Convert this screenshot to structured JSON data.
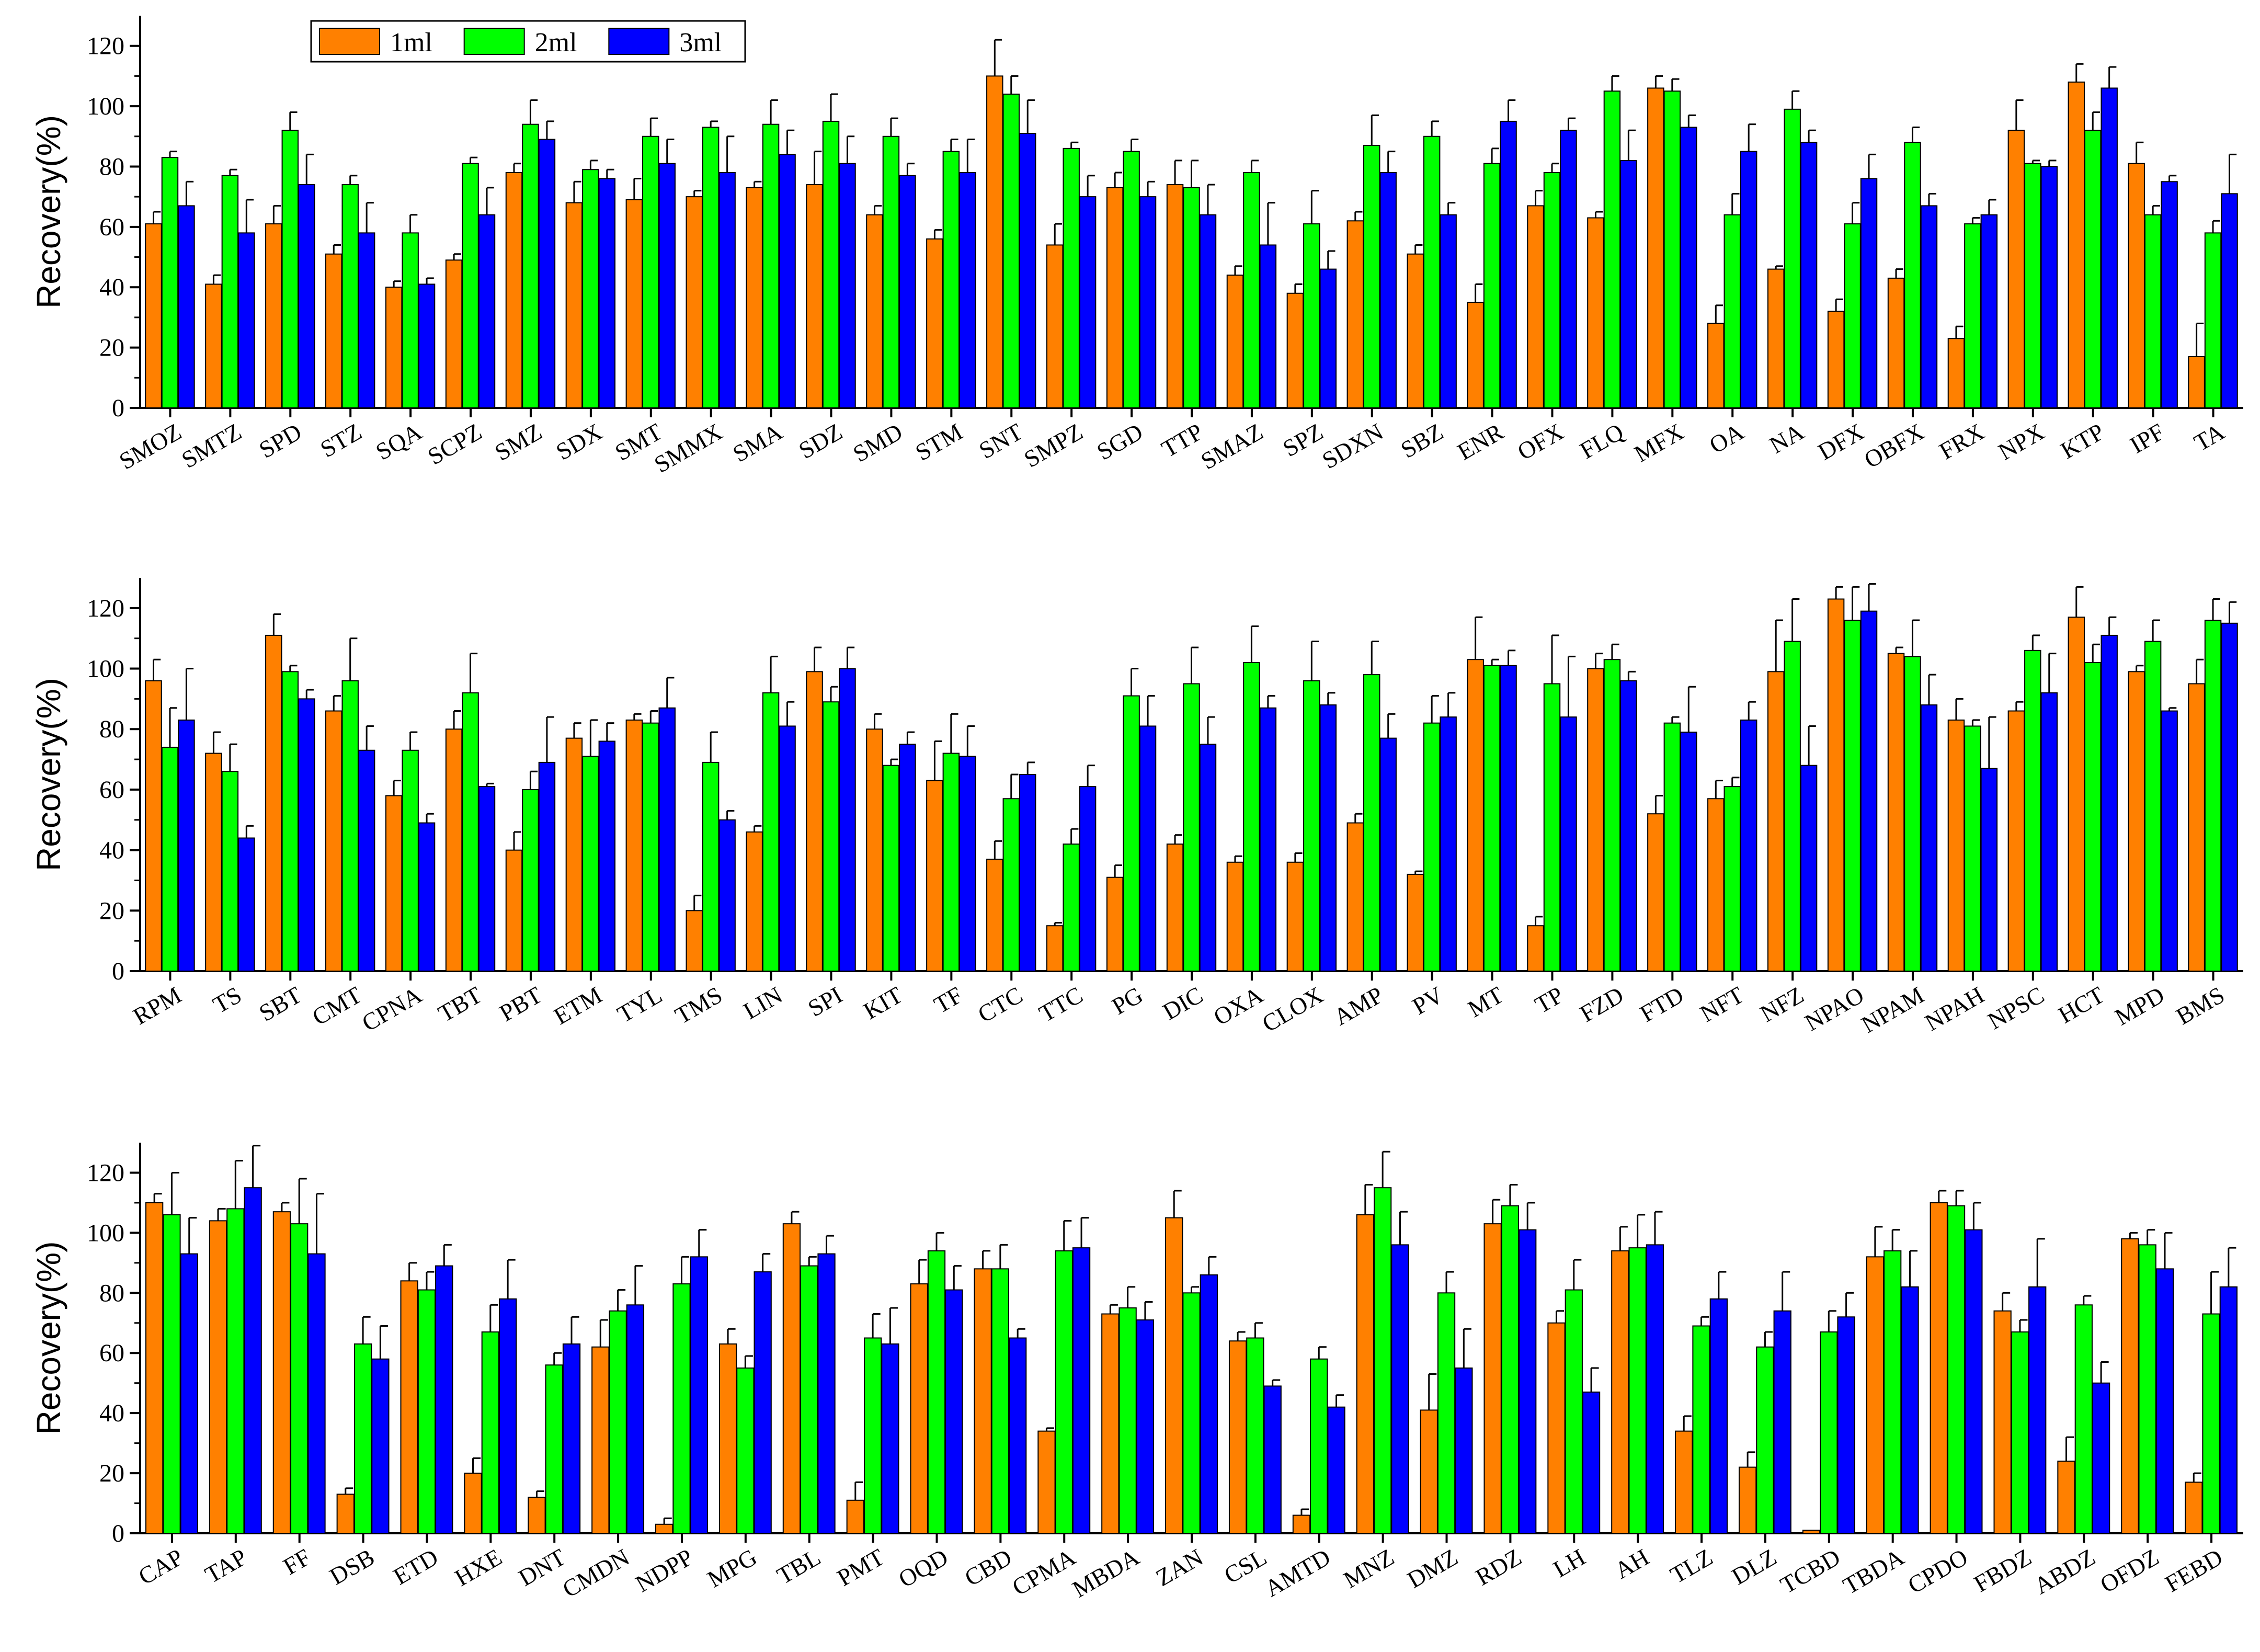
{
  "legend": [
    "1ml",
    "2ml",
    "3ml"
  ],
  "colors": {
    "1ml": "#ff8000",
    "2ml": "#00ff00",
    "3ml": "#0000ff"
  },
  "chart_data": [
    {
      "type": "bar",
      "ylabel": "Recovery(%)",
      "ylim": [
        0,
        130
      ],
      "yticks": [
        0,
        20,
        40,
        60,
        80,
        100,
        120
      ],
      "legend_position": "top-left",
      "categories": [
        "SMOZ",
        "SMTZ",
        "SPD",
        "STZ",
        "SQA",
        "SCPZ",
        "SMZ",
        "SDX",
        "SMT",
        "SMMX",
        "SMA",
        "SDZ",
        "SMD",
        "STM",
        "SNT",
        "SMPZ",
        "SGD",
        "TTP",
        "SMAZ",
        "SPZ",
        "SDXN",
        "SBZ",
        "ENR",
        "OFX",
        "FLQ",
        "MFX",
        "OA",
        "NA",
        "DFX",
        "OBFX",
        "FRX",
        "NPX",
        "KTP",
        "IPF",
        "TA"
      ],
      "series": [
        {
          "name": "1ml",
          "values": [
            61,
            41,
            61,
            51,
            40,
            49,
            78,
            68,
            69,
            70,
            73,
            74,
            64,
            56,
            110,
            54,
            73,
            74,
            44,
            38,
            62,
            51,
            35,
            67,
            63,
            106,
            28,
            46,
            32,
            43,
            23,
            92,
            108,
            81,
            17
          ],
          "errors": [
            4,
            3,
            6,
            3,
            2,
            2,
            3,
            7,
            7,
            2,
            2,
            11,
            3,
            3,
            12,
            7,
            5,
            8,
            3,
            3,
            3,
            3,
            6,
            5,
            2,
            4,
            6,
            1,
            4,
            3,
            4,
            10,
            6,
            7,
            11
          ]
        },
        {
          "name": "2ml",
          "values": [
            83,
            77,
            92,
            74,
            58,
            81,
            94,
            79,
            90,
            93,
            94,
            95,
            90,
            85,
            104,
            86,
            85,
            73,
            78,
            61,
            87,
            90,
            81,
            78,
            105,
            105,
            64,
            99,
            61,
            88,
            61,
            81,
            92,
            64,
            58
          ],
          "errors": [
            2,
            2,
            6,
            3,
            6,
            2,
            8,
            3,
            6,
            2,
            8,
            9,
            6,
            4,
            6,
            2,
            4,
            9,
            4,
            11,
            10,
            5,
            5,
            3,
            5,
            4,
            7,
            6,
            7,
            5,
            2,
            1,
            6,
            3,
            4
          ]
        },
        {
          "name": "3ml",
          "values": [
            67,
            58,
            74,
            58,
            41,
            64,
            89,
            76,
            81,
            78,
            84,
            81,
            77,
            78,
            91,
            70,
            70,
            64,
            54,
            46,
            78,
            64,
            95,
            92,
            82,
            93,
            85,
            88,
            76,
            67,
            64,
            80,
            106,
            75,
            71
          ],
          "errors": [
            8,
            11,
            10,
            10,
            2,
            9,
            6,
            3,
            8,
            12,
            8,
            9,
            4,
            11,
            11,
            7,
            5,
            10,
            14,
            6,
            7,
            4,
            7,
            4,
            10,
            4,
            9,
            4,
            8,
            4,
            5,
            2,
            7,
            2,
            13
          ]
        }
      ]
    },
    {
      "type": "bar",
      "ylabel": "Recovery(%)",
      "ylim": [
        0,
        130
      ],
      "yticks": [
        0,
        20,
        40,
        60,
        80,
        100,
        120
      ],
      "categories": [
        "RPM",
        "TS",
        "SBT",
        "CMT",
        "CPNA",
        "TBT",
        "PBT",
        "ETM",
        "TYL",
        "TMS",
        "LIN",
        "SPI",
        "KIT",
        "TF",
        "CTC",
        "TTC",
        "PG",
        "DIC",
        "OXA",
        "CLOX",
        "AMP",
        "PV",
        "MT",
        "TP",
        "FZD",
        "FTD",
        "NFT",
        "NFZ",
        "NPAO",
        "NPAM",
        "NPAH",
        "NPSC",
        "HCT",
        "MPD",
        "BMS"
      ],
      "series": [
        {
          "name": "1ml",
          "values": [
            96,
            72,
            111,
            86,
            58,
            80,
            40,
            77,
            83,
            20,
            46,
            99,
            80,
            63,
            37,
            15,
            31,
            42,
            36,
            36,
            49,
            32,
            103,
            15,
            100,
            52,
            57,
            99,
            123,
            105,
            83,
            86,
            117,
            99,
            95
          ],
          "errors": [
            7,
            7,
            7,
            5,
            5,
            6,
            6,
            5,
            2,
            5,
            2,
            8,
            5,
            13,
            6,
            1,
            4,
            3,
            2,
            3,
            3,
            1,
            14,
            3,
            5,
            6,
            6,
            17,
            4,
            2,
            7,
            3,
            10,
            2,
            8
          ]
        },
        {
          "name": "2ml",
          "values": [
            74,
            66,
            99,
            96,
            73,
            92,
            60,
            71,
            82,
            69,
            92,
            89,
            68,
            72,
            57,
            42,
            91,
            95,
            102,
            96,
            98,
            82,
            101,
            95,
            103,
            82,
            61,
            109,
            116,
            104,
            81,
            106,
            102,
            109,
            116
          ],
          "errors": [
            13,
            9,
            2,
            14,
            6,
            13,
            6,
            12,
            4,
            10,
            12,
            5,
            2,
            13,
            8,
            5,
            9,
            12,
            12,
            13,
            11,
            9,
            2,
            16,
            5,
            2,
            3,
            14,
            11,
            12,
            2,
            5,
            6,
            7,
            7
          ]
        },
        {
          "name": "3ml",
          "values": [
            83,
            44,
            90,
            73,
            49,
            61,
            69,
            76,
            87,
            50,
            81,
            100,
            75,
            71,
            65,
            61,
            81,
            75,
            87,
            88,
            77,
            84,
            101,
            84,
            96,
            79,
            83,
            68,
            119,
            88,
            67,
            92,
            111,
            86,
            115
          ],
          "errors": [
            17,
            4,
            3,
            8,
            3,
            1,
            15,
            6,
            10,
            3,
            8,
            7,
            4,
            10,
            4,
            7,
            10,
            9,
            4,
            4,
            8,
            8,
            5,
            20,
            3,
            15,
            6,
            13,
            9,
            10,
            17,
            13,
            6,
            1,
            7
          ]
        }
      ]
    },
    {
      "type": "bar",
      "ylabel": "Recovery(%)",
      "ylim": [
        0,
        130
      ],
      "yticks": [
        0,
        20,
        40,
        60,
        80,
        100,
        120
      ],
      "categories": [
        "CAP",
        "TAP",
        "FF",
        "DSB",
        "ETD",
        "HXE",
        "DNT",
        "CMDN",
        "NDPP",
        "MPG",
        "TBL",
        "PMT",
        "OQD",
        "CBD",
        "CPMA",
        "MBDA",
        "ZAN",
        "CSL",
        "AMTD",
        "MNZ",
        "DMZ",
        "RDZ",
        "LH",
        "AH",
        "TLZ",
        "DLZ",
        "TCBD",
        "TBDA",
        "CPDO",
        "FBDZ",
        "ABDZ",
        "OFDZ",
        "FEBD"
      ],
      "series": [
        {
          "name": "1ml",
          "values": [
            110,
            104,
            107,
            13,
            84,
            20,
            12,
            62,
            3,
            63,
            103,
            11,
            83,
            88,
            34,
            73,
            105,
            64,
            6,
            106,
            41,
            103,
            70,
            94,
            34,
            22,
            1,
            92,
            110,
            74,
            24,
            98,
            17
          ],
          "errors": [
            3,
            4,
            3,
            2,
            6,
            5,
            2,
            9,
            2,
            5,
            4,
            6,
            8,
            6,
            1,
            3,
            9,
            3,
            2,
            10,
            12,
            8,
            4,
            8,
            5,
            5,
            0,
            10,
            4,
            6,
            8,
            2,
            3
          ]
        },
        {
          "name": "2ml",
          "values": [
            106,
            108,
            103,
            63,
            81,
            67,
            56,
            74,
            83,
            55,
            89,
            65,
            94,
            88,
            94,
            75,
            80,
            65,
            58,
            115,
            80,
            109,
            81,
            95,
            69,
            62,
            67,
            94,
            109,
            67,
            76,
            96,
            73
          ]
        },
        {
          "name": "3ml",
          "values": [
            93,
            115,
            93,
            58,
            89,
            78,
            63,
            76,
            92,
            87,
            93,
            63,
            81,
            65,
            95,
            71,
            86,
            49,
            42,
            96,
            55,
            101,
            47,
            96,
            78,
            74,
            72,
            82,
            101,
            82,
            50,
            88,
            82
          ]
        }
      ],
      "errors_2ml": [
        14,
        16,
        15,
        9,
        6,
        9,
        4,
        7,
        9,
        4,
        3,
        8,
        6,
        8,
        10,
        7,
        2,
        5,
        4,
        12,
        7,
        7,
        10,
        11,
        3,
        5,
        7,
        7,
        5,
        4,
        3,
        5,
        14
      ],
      "errors_3ml": [
        12,
        14,
        20,
        11,
        7,
        13,
        9,
        13,
        9,
        6,
        6,
        12,
        8,
        3,
        10,
        6,
        6,
        2,
        4,
        11,
        13,
        9,
        8,
        11,
        9,
        13,
        8,
        12,
        9,
        16,
        7,
        12,
        13
      ]
    }
  ]
}
